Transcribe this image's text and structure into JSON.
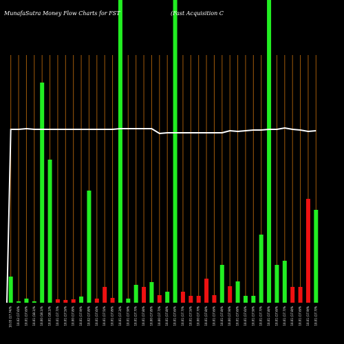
{
  "header": {
    "title": "MunafaSutra  Money Flow  Charts for FST",
    "subtitle": "(Fast Acquisition  C"
  },
  "colors": {
    "background": "#000000",
    "up": "#22ee22",
    "down": "#ee1111",
    "grid": "#a05a0a",
    "line": "#ffffff"
  },
  "chart_data": {
    "type": "bar",
    "title": "MunafaSutra  Money Flow  Charts for FST",
    "subtitle": "(Fast Acquisition  C",
    "grid": true,
    "categories": [
      "10.03 (17.74)%",
      "10.02 (17.6)%",
      "10.01 (17.6)%",
      "10.01 (18.1)%",
      "10.00 (18.1)%",
      "10.01 (18.1)%",
      "10.01 (17.7)%",
      "10.01 (17.5)%",
      "10.00 (17.8)%",
      "10.01 (17.9)%",
      "10.02 (17.8)%",
      "10.01 (17.6)%",
      "10.01 (17.5)%",
      "10.01 (17.8)%",
      "10.01 (17.3)%",
      "10.01 (17.9)%",
      "10.01 (17.7)%",
      "10.01 (17.8)%",
      "10.00 (17.8)%",
      "10.00 (17.7)%",
      "10.01 (17.8)%",
      "10.01 (17.6)%",
      "10.01 (17.7)%",
      "10.01 (17.5)%",
      "10.00 (17.7)%",
      "10.01 (17.8)%",
      "10.01 (17.6)%",
      "10.01 (17.8)%",
      "10.00 (17.9)%",
      "10.01 (17.6)%",
      "10.01 (17.6)%",
      "10.01 (17.9)%",
      "10.01 (17.7)%",
      "10.01 (17.8)%",
      "10.01 (17.6)%",
      "10.01 (17.7)%",
      "10.01 (17.8)%",
      "10.01 (17.6)%",
      "10.01 (17.9)%",
      "10.01 (17.7)%"
    ],
    "series": [
      {
        "values": [
          38,
          2,
          6,
          2,
          320,
          208,
          5,
          4,
          5,
          9,
          163,
          6,
          23,
          7,
          440,
          6,
          26,
          23,
          30,
          11,
          16,
          440,
          16,
          10,
          10,
          35,
          11,
          55,
          24,
          31,
          10,
          10,
          99,
          440,
          55,
          61,
          23,
          23,
          151,
          135
        ],
        "colors": [
          "up",
          "up",
          "up",
          "up",
          "up",
          "up",
          "down",
          "down",
          "down",
          "up",
          "up",
          "down",
          "down",
          "down",
          "up",
          "up",
          "up",
          "down",
          "up",
          "down",
          "up",
          "up",
          "down",
          "down",
          "down",
          "down",
          "down",
          "up",
          "down",
          "up",
          "up",
          "up",
          "up",
          "up",
          "up",
          "up",
          "down",
          "down",
          "down",
          "up"
        ]
      }
    ],
    "line_values": [
      252,
      252,
      253,
      252,
      252,
      252,
      252,
      252,
      252,
      252,
      252,
      252,
      252,
      252,
      253,
      253,
      253,
      253,
      253,
      246,
      247,
      247,
      247,
      247,
      247,
      247,
      247,
      247,
      250,
      249,
      250,
      251,
      251,
      252,
      252,
      254,
      252,
      251,
      249,
      250
    ],
    "ylim": [
      0,
      440
    ]
  }
}
